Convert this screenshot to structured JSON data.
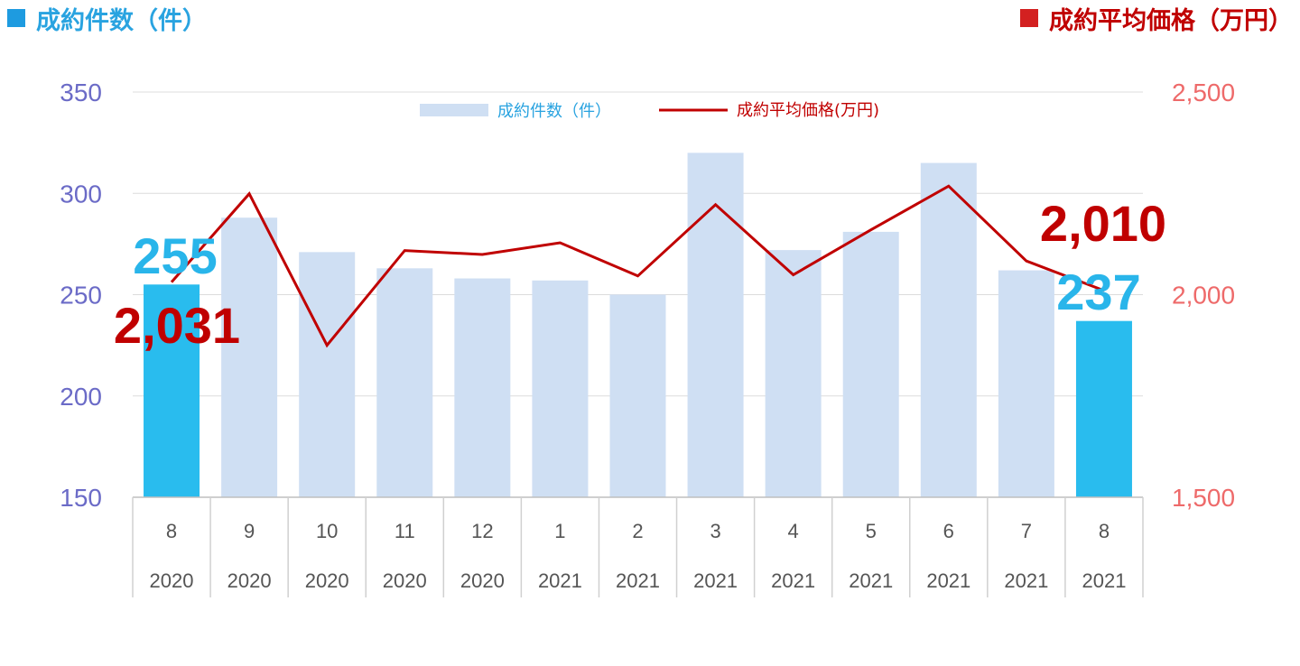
{
  "header": {
    "left_title": "成約件数（件）",
    "right_title": "成約平均価格（万円）"
  },
  "colors": {
    "bar": "#cfdff3",
    "bar_highlight": "#29bcee",
    "line": "#c00000",
    "left_axis": "#6b6bc7",
    "right_axis": "#ee6a6a"
  },
  "chart_data": {
    "type": "bar",
    "categories": [
      "8",
      "9",
      "10",
      "11",
      "12",
      "1",
      "2",
      "3",
      "4",
      "5",
      "6",
      "7",
      "8"
    ],
    "years": [
      "2020",
      "2020",
      "2020",
      "2020",
      "2020",
      "2021",
      "2021",
      "2021",
      "2021",
      "2021",
      "2021",
      "2021",
      "2021"
    ],
    "series": [
      {
        "name": "成約件数（件）",
        "type": "bar",
        "axis": "left",
        "values": [
          255,
          288,
          271,
          263,
          258,
          257,
          250,
          320,
          272,
          281,
          315,
          262,
          237
        ],
        "highlight": [
          0,
          12
        ]
      },
      {
        "name": "成約平均価格(万円)",
        "type": "line",
        "axis": "right",
        "values": [
          2031,
          2249,
          1875,
          2109,
          2099,
          2128,
          2046,
          2222,
          2049,
          2160,
          2268,
          2083,
          2010
        ]
      }
    ],
    "ylim_left": [
      150,
      350
    ],
    "yticks_left": [
      "150",
      "200",
      "250",
      "300",
      "350"
    ],
    "ylim_right": [
      1500,
      2500
    ],
    "yticks_right": [
      "1,500",
      "2,000",
      "2,500"
    ],
    "annotations": {
      "first_count": "255",
      "last_count": "237",
      "first_price": "2,031",
      "last_price": "2,010"
    },
    "grid": true,
    "legend": "top-center"
  }
}
